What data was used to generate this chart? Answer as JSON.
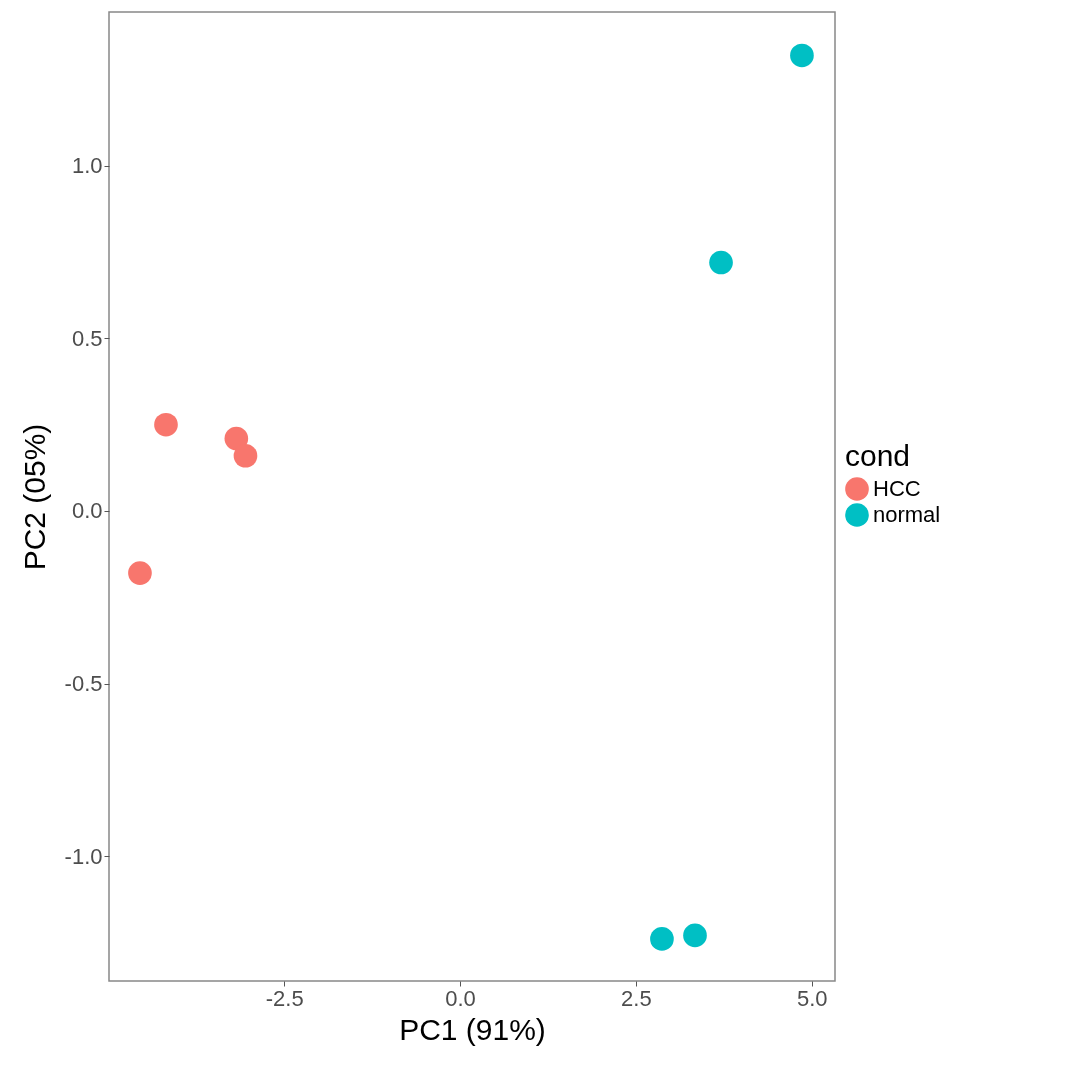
{
  "chart_data": {
    "type": "scatter",
    "xlabel": "PC1 (91%)",
    "ylabel": "PC2 (05%)",
    "legend_title": "cond",
    "legend": "right",
    "grid": false,
    "marker": "circle",
    "xlim": [
      -4.99,
      5.33
    ],
    "ylim": [
      -1.362,
      1.446
    ],
    "xticks": [
      {
        "value": -2.5,
        "label": "-2.5"
      },
      {
        "value": 0,
        "label": "0.0"
      },
      {
        "value": 2.5,
        "label": "2.5"
      },
      {
        "value": 5,
        "label": "5.0"
      }
    ],
    "yticks": [
      {
        "value": -1,
        "label": "-1.0"
      },
      {
        "value": -0.5,
        "label": "-0.5"
      },
      {
        "value": 0,
        "label": "0.0"
      },
      {
        "value": 0.5,
        "label": "0.5"
      },
      {
        "value": 1,
        "label": "1.0"
      }
    ],
    "series": [
      {
        "name": "HCC",
        "color": "#f8766d",
        "x": [
          -4.18,
          -3.18,
          -3.05,
          -4.55
        ],
        "values": [
          0.25,
          0.21,
          0.16,
          -0.18
        ]
      },
      {
        "name": "normal",
        "color": "#00bfc4",
        "x": [
          4.86,
          3.71,
          2.87,
          3.34
        ],
        "values": [
          1.32,
          0.72,
          -1.24,
          -1.23
        ]
      }
    ]
  }
}
